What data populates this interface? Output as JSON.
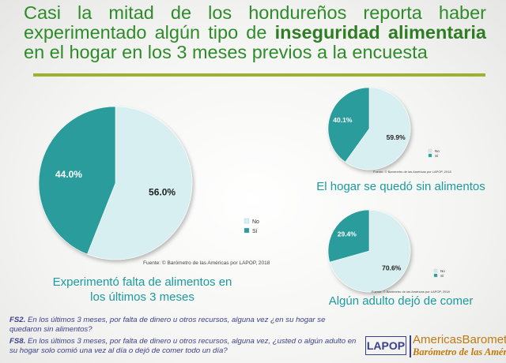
{
  "header": {
    "title_part1": "Casi la mitad de los hondureños reporta haber experimentado algún tipo de",
    "title_highlight": "inseguridad alimentaria",
    "title_part2": "en el hogar en los 3 meses previos a la encuesta"
  },
  "colors": {
    "no": "#d8eff1",
    "si": "#2a9c9c",
    "title": "#2e8b2a",
    "caption": "#1a9ba0",
    "rule": "#a0b030"
  },
  "chart_data": [
    {
      "type": "pie",
      "title": "Experimentó falta de alimentos en los últimos 3 meses",
      "title_line1": "Experimentó falta de alimentos en",
      "title_line2": "los últimos 3 meses",
      "categories": [
        "No",
        "Sí"
      ],
      "values": [
        56.0,
        44.0
      ],
      "labels": [
        "56.0%",
        "44.0%"
      ],
      "legend_position": "right",
      "source": "Fuente: © Barómetro de las Américas por LAPOP, 2018"
    },
    {
      "type": "pie",
      "title": "El hogar se quedó sin alimentos",
      "categories": [
        "No",
        "Sí"
      ],
      "values": [
        59.9,
        40.1
      ],
      "labels": [
        "59.9%",
        "40.1%"
      ],
      "legend_position": "right",
      "source": "Fuente: © Barómetro de las Américas por LAPOP, 2018"
    },
    {
      "type": "pie",
      "title": "Algún adulto dejó de comer",
      "categories": [
        "No",
        "Sí"
      ],
      "values": [
        70.6,
        29.4
      ],
      "labels": [
        "70.6%",
        "29.4%"
      ],
      "legend_position": "right",
      "source": "Fuente: © Barómetro de las Américas por LAPOP, 2018"
    }
  ],
  "questions": [
    {
      "code": "FS2.",
      "text": "En los últimos 3 meses, por falta de dinero u otros recursos, alguna vez ¿en su hogar se quedaron sin alimentos?"
    },
    {
      "code": "FS8.",
      "text": "En los últimos 3 meses, por falta de dinero u otros recursos, alguna vez, ¿usted o algún adulto en su hogar solo comió una vez al día o dejó de comer todo un día?"
    }
  ],
  "logo": {
    "box_text": "LAPOP",
    "name": "AmericasBarometer",
    "tagline": "Barómetro de las Américas"
  }
}
